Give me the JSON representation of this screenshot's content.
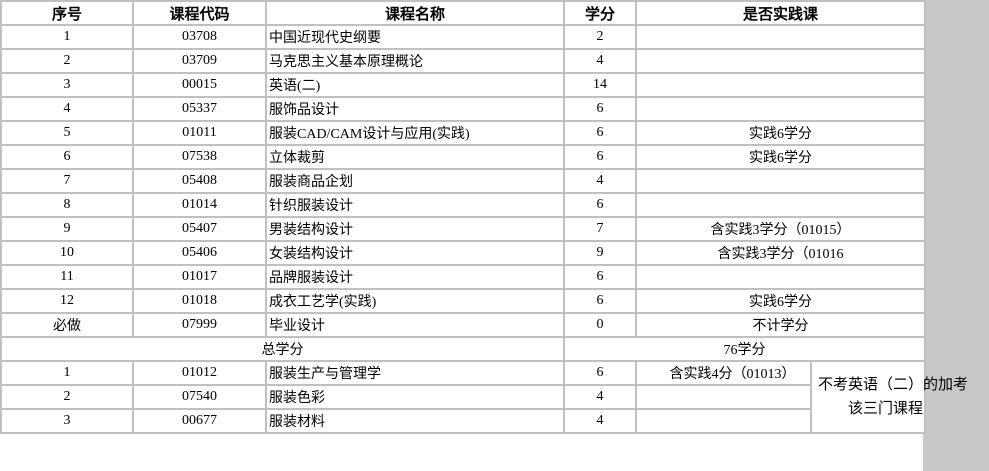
{
  "headers": [
    "序号",
    "课程代码",
    "课程名称",
    "学分",
    "是否实践课"
  ],
  "rows": [
    {
      "no": "1",
      "code": "03708",
      "name": "中国近现代史纲要",
      "credit": "2",
      "practice": ""
    },
    {
      "no": "2",
      "code": "03709",
      "name": "马克思主义基本原理概论",
      "credit": "4",
      "practice": ""
    },
    {
      "no": "3",
      "code": "00015",
      "name": "英语(二)",
      "credit": "14",
      "practice": ""
    },
    {
      "no": "4",
      "code": "05337",
      "name": "服饰品设计",
      "credit": "6",
      "practice": ""
    },
    {
      "no": "5",
      "code": "01011",
      "name": "服装CAD/CAM设计与应用(实践)",
      "credit": "6",
      "practice": "实践6学分"
    },
    {
      "no": "6",
      "code": "07538",
      "name": "立体裁剪",
      "credit": "6",
      "practice": "实践6学分"
    },
    {
      "no": "7",
      "code": "05408",
      "name": "服装商品企划",
      "credit": "4",
      "practice": ""
    },
    {
      "no": "8",
      "code": "01014",
      "name": "针织服装设计",
      "credit": "6",
      "practice": ""
    },
    {
      "no": "9",
      "code": "05407",
      "name": "男装结构设计",
      "credit": "7",
      "practice": "含实践3学分（01015）"
    },
    {
      "no": "10",
      "code": "05406",
      "name": "女装结构设计",
      "credit": "9",
      "practice": "含实践3学分（01016"
    },
    {
      "no": "11",
      "code": "01017",
      "name": "品牌服装设计",
      "credit": "6",
      "practice": ""
    },
    {
      "no": "12",
      "code": "01018",
      "name": "成衣工艺学(实践)",
      "credit": "6",
      "practice": "实践6学分"
    },
    {
      "no": "必做",
      "code": "07999",
      "name": "毕业设计",
      "credit": "0",
      "practice": "不计学分"
    }
  ],
  "total": {
    "label": "总学分",
    "value": "76学分"
  },
  "extra_rows": [
    {
      "no": "1",
      "code": "01012",
      "name": "服装生产与管理学",
      "credit": "6",
      "practice": "含实践4分（01013）"
    },
    {
      "no": "2",
      "code": "07540",
      "name": "服装色彩",
      "credit": "4",
      "practice": ""
    },
    {
      "no": "3",
      "code": "00677",
      "name": "服装材料",
      "credit": "4",
      "practice": ""
    }
  ],
  "extra_note": [
    "不考英语（二）的加考",
    "该三门课程"
  ]
}
